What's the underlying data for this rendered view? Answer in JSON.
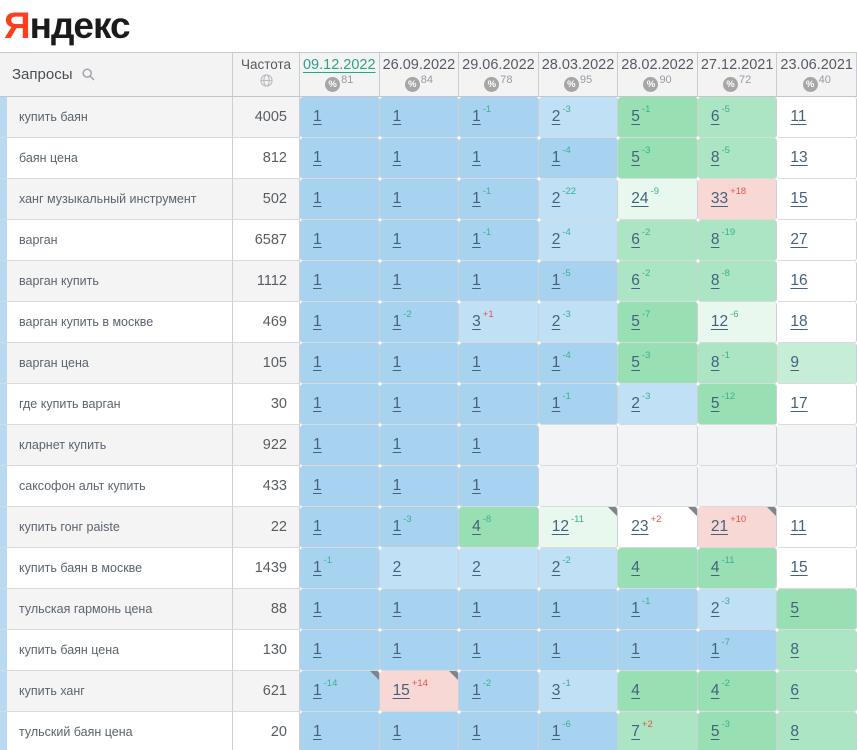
{
  "logo": {
    "first_letter": "Я",
    "rest": "ндекс"
  },
  "colors": {
    "accent_bar": "#b9d9f0",
    "active_date": "#2da385",
    "change_improved": "#3bb08f",
    "change_worsened": "#e0544a",
    "pos1_bg": "#a7d3f0",
    "pos23_bg": "#c0e0f6",
    "top5_bg": "#99dfb4",
    "top8_bg": "#ace5c3",
    "top10_bg": "#c6edd6",
    "improved_faint_bg": "#e9f8ef",
    "dropped_pink_bg": "#f8d8d5",
    "white_bg": "#ffffff",
    "empty_bg": "#f3f4f6"
  },
  "table": {
    "keyword_header": "Запросы",
    "frequency_header": "Частота",
    "date_columns": [
      {
        "date": "09.12.2022",
        "visibility": "81",
        "active": true
      },
      {
        "date": "26.09.2022",
        "visibility": "84",
        "active": false
      },
      {
        "date": "29.06.2022",
        "visibility": "78",
        "active": false
      },
      {
        "date": "28.03.2022",
        "visibility": "95",
        "active": false
      },
      {
        "date": "28.02.2022",
        "visibility": "90",
        "active": false
      },
      {
        "date": "27.12.2021",
        "visibility": "72",
        "active": false
      },
      {
        "date": "23.06.2021",
        "visibility": "40",
        "active": false
      }
    ],
    "rows": [
      {
        "keyword": "купить баян",
        "frequency": "4005",
        "cells": [
          {
            "pos": "1",
            "bg": "b1"
          },
          {
            "pos": "1",
            "bg": "b1"
          },
          {
            "pos": "1",
            "chg": "-1",
            "bg": "b1"
          },
          {
            "pos": "2",
            "chg": "-3",
            "bg": "b2"
          },
          {
            "pos": "5",
            "chg": "-1",
            "bg": "g1"
          },
          {
            "pos": "6",
            "chg": "-5",
            "bg": "g2"
          },
          {
            "pos": "11",
            "bg": "wh"
          }
        ]
      },
      {
        "keyword": "баян цена",
        "frequency": "812",
        "cells": [
          {
            "pos": "1",
            "bg": "b1"
          },
          {
            "pos": "1",
            "bg": "b1"
          },
          {
            "pos": "1",
            "bg": "b1"
          },
          {
            "pos": "1",
            "chg": "-4",
            "bg": "b1"
          },
          {
            "pos": "5",
            "chg": "-3",
            "bg": "g1"
          },
          {
            "pos": "8",
            "chg": "-5",
            "bg": "g2"
          },
          {
            "pos": "13",
            "bg": "wh"
          }
        ]
      },
      {
        "keyword": "ханг музыкальный инструмент",
        "frequency": "502",
        "cells": [
          {
            "pos": "1",
            "bg": "b1"
          },
          {
            "pos": "1",
            "bg": "b1"
          },
          {
            "pos": "1",
            "chg": "-1",
            "bg": "b1"
          },
          {
            "pos": "2",
            "chg": "-22",
            "bg": "b2"
          },
          {
            "pos": "24",
            "chg": "-9",
            "bg": "g4"
          },
          {
            "pos": "33",
            "chg": "+18",
            "bg": "pk"
          },
          {
            "pos": "15",
            "bg": "wh"
          }
        ]
      },
      {
        "keyword": "варган",
        "frequency": "6587",
        "cells": [
          {
            "pos": "1",
            "bg": "b1"
          },
          {
            "pos": "1",
            "bg": "b1"
          },
          {
            "pos": "1",
            "chg": "-1",
            "bg": "b1"
          },
          {
            "pos": "2",
            "chg": "-4",
            "bg": "b2"
          },
          {
            "pos": "6",
            "chg": "-2",
            "bg": "g2"
          },
          {
            "pos": "8",
            "chg": "-19",
            "bg": "g2"
          },
          {
            "pos": "27",
            "bg": "wh"
          }
        ]
      },
      {
        "keyword": "варган купить",
        "frequency": "1112",
        "cells": [
          {
            "pos": "1",
            "bg": "b1"
          },
          {
            "pos": "1",
            "bg": "b1"
          },
          {
            "pos": "1",
            "bg": "b1"
          },
          {
            "pos": "1",
            "chg": "-5",
            "bg": "b1"
          },
          {
            "pos": "6",
            "chg": "-2",
            "bg": "g2"
          },
          {
            "pos": "8",
            "chg": "-8",
            "bg": "g2"
          },
          {
            "pos": "16",
            "bg": "wh"
          }
        ]
      },
      {
        "keyword": "варган купить в москве",
        "frequency": "469",
        "cells": [
          {
            "pos": "1",
            "bg": "b1"
          },
          {
            "pos": "1",
            "chg": "-2",
            "bg": "b1"
          },
          {
            "pos": "3",
            "chg": "+1",
            "bg": "b2"
          },
          {
            "pos": "2",
            "chg": "-3",
            "bg": "b2"
          },
          {
            "pos": "5",
            "chg": "-7",
            "bg": "g1"
          },
          {
            "pos": "12",
            "chg": "-6",
            "bg": "g4"
          },
          {
            "pos": "18",
            "bg": "wh"
          }
        ]
      },
      {
        "keyword": "варган цена",
        "frequency": "105",
        "cells": [
          {
            "pos": "1",
            "bg": "b1"
          },
          {
            "pos": "1",
            "bg": "b1"
          },
          {
            "pos": "1",
            "bg": "b1"
          },
          {
            "pos": "1",
            "chg": "-4",
            "bg": "b1"
          },
          {
            "pos": "5",
            "chg": "-3",
            "bg": "g1"
          },
          {
            "pos": "8",
            "chg": "-1",
            "bg": "g2"
          },
          {
            "pos": "9",
            "bg": "g3"
          }
        ]
      },
      {
        "keyword": "где купить варган",
        "frequency": "30",
        "cells": [
          {
            "pos": "1",
            "bg": "b1"
          },
          {
            "pos": "1",
            "bg": "b1"
          },
          {
            "pos": "1",
            "bg": "b1"
          },
          {
            "pos": "1",
            "chg": "-1",
            "bg": "b1"
          },
          {
            "pos": "2",
            "chg": "-3",
            "bg": "b2"
          },
          {
            "pos": "5",
            "chg": "-12",
            "bg": "g1"
          },
          {
            "pos": "17",
            "bg": "wh"
          }
        ]
      },
      {
        "keyword": "кларнет купить",
        "frequency": "922",
        "cells": [
          {
            "pos": "1",
            "bg": "b1"
          },
          {
            "pos": "1",
            "bg": "b1"
          },
          {
            "pos": "1",
            "bg": "b1"
          },
          {
            "bg": "emp"
          },
          {
            "bg": "emp"
          },
          {
            "bg": "emp"
          },
          {
            "bg": "emp"
          }
        ]
      },
      {
        "keyword": "саксофон альт купить",
        "frequency": "433",
        "cells": [
          {
            "pos": "1",
            "bg": "b1"
          },
          {
            "pos": "1",
            "bg": "b1"
          },
          {
            "pos": "1",
            "bg": "b1"
          },
          {
            "bg": "emp"
          },
          {
            "bg": "emp"
          },
          {
            "bg": "emp"
          },
          {
            "bg": "emp"
          }
        ]
      },
      {
        "keyword": "купить гонг paiste",
        "frequency": "22",
        "cells": [
          {
            "pos": "1",
            "bg": "b1"
          },
          {
            "pos": "1",
            "chg": "-3",
            "bg": "b1"
          },
          {
            "pos": "4",
            "chg": "-8",
            "bg": "g1"
          },
          {
            "pos": "12",
            "chg": "-11",
            "bg": "g4",
            "flag": true
          },
          {
            "pos": "23",
            "chg": "+2",
            "bg": "wh",
            "flag": true
          },
          {
            "pos": "21",
            "chg": "+10",
            "bg": "pk",
            "flag": true
          },
          {
            "pos": "11",
            "bg": "wh"
          }
        ]
      },
      {
        "keyword": "купить баян в москве",
        "frequency": "1439",
        "cells": [
          {
            "pos": "1",
            "chg": "-1",
            "bg": "b1"
          },
          {
            "pos": "2",
            "bg": "b2"
          },
          {
            "pos": "2",
            "bg": "b2"
          },
          {
            "pos": "2",
            "chg": "-2",
            "bg": "b2"
          },
          {
            "pos": "4",
            "bg": "g1"
          },
          {
            "pos": "4",
            "chg": "-11",
            "bg": "g1"
          },
          {
            "pos": "15",
            "bg": "wh"
          }
        ]
      },
      {
        "keyword": "тульская гармонь цена",
        "frequency": "88",
        "cells": [
          {
            "pos": "1",
            "bg": "b1"
          },
          {
            "pos": "1",
            "bg": "b1"
          },
          {
            "pos": "1",
            "bg": "b1"
          },
          {
            "pos": "1",
            "bg": "b1"
          },
          {
            "pos": "1",
            "chg": "-1",
            "bg": "b1"
          },
          {
            "pos": "2",
            "chg": "-3",
            "bg": "b2"
          },
          {
            "pos": "5",
            "bg": "g1"
          }
        ]
      },
      {
        "keyword": "купить баян цена",
        "frequency": "130",
        "cells": [
          {
            "pos": "1",
            "bg": "b1"
          },
          {
            "pos": "1",
            "bg": "b1"
          },
          {
            "pos": "1",
            "bg": "b1"
          },
          {
            "pos": "1",
            "bg": "b1"
          },
          {
            "pos": "1",
            "bg": "b1"
          },
          {
            "pos": "1",
            "chg": "-7",
            "bg": "b1"
          },
          {
            "pos": "8",
            "bg": "g2"
          }
        ]
      },
      {
        "keyword": "купить ханг",
        "frequency": "621",
        "cells": [
          {
            "pos": "1",
            "chg": "-14",
            "bg": "b1",
            "flag": true
          },
          {
            "pos": "15",
            "chg": "+14",
            "bg": "pk",
            "flag": true
          },
          {
            "pos": "1",
            "chg": "-2",
            "bg": "b1"
          },
          {
            "pos": "3",
            "chg": "-1",
            "bg": "b2"
          },
          {
            "pos": "4",
            "bg": "g1"
          },
          {
            "pos": "4",
            "chg": "-2",
            "bg": "g1"
          },
          {
            "pos": "6",
            "bg": "g2"
          }
        ]
      },
      {
        "keyword": "тульский баян цена",
        "frequency": "20",
        "cells": [
          {
            "pos": "1",
            "bg": "b1"
          },
          {
            "pos": "1",
            "bg": "b1"
          },
          {
            "pos": "1",
            "bg": "b1"
          },
          {
            "pos": "1",
            "chg": "-6",
            "bg": "b1"
          },
          {
            "pos": "7",
            "chg": "+2",
            "bg": "g2"
          },
          {
            "pos": "5",
            "chg": "-3",
            "bg": "g1"
          },
          {
            "pos": "8",
            "bg": "g2"
          }
        ]
      }
    ]
  }
}
